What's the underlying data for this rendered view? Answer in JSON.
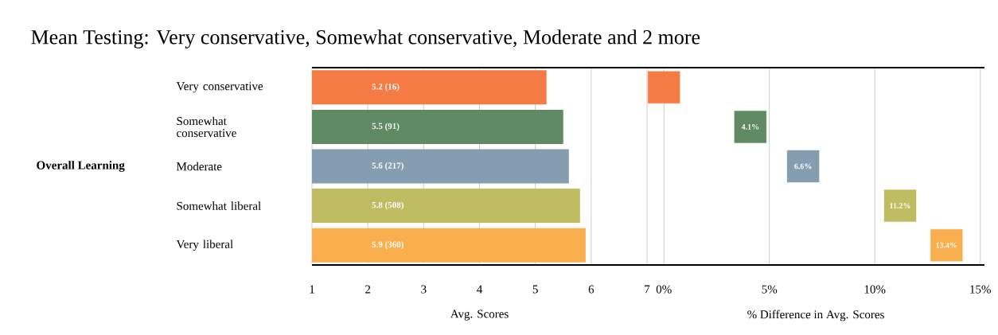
{
  "chart_data": [
    {
      "type": "bar",
      "orientation": "horizontal",
      "title": "Mean Testing: Very conservative, Somewhat conservative, Moderate and 2 more",
      "ylabel": "Overall Learning",
      "xlabel": "Avg. Scores",
      "categories": [
        "Very conservative",
        "Somewhat conservative",
        "Moderate",
        "Somewhat liberal",
        "Very liberal"
      ],
      "values": [
        5.2,
        5.5,
        5.6,
        5.8,
        5.9
      ],
      "colors": [
        "#f47b43",
        "#608a63",
        "#859db1",
        "#bfbc62",
        "#f9af4d"
      ],
      "value_labels": [
        "5.2  (16)",
        "5.5  (91)",
        "5.6  (217)",
        "5.8  (508)",
        "5.9  (360)"
      ],
      "xlim": [
        1,
        7
      ],
      "xticks": [
        1,
        2,
        3,
        4,
        5,
        6,
        7
      ],
      "grid": "x"
    },
    {
      "type": "scatter",
      "orientation": "horizontal",
      "marker": "square",
      "xlabel": "% Difference in Avg. Scores",
      "values": [
        0,
        4.1,
        6.6,
        11.2,
        13.4
      ],
      "colors": [
        "#f47b43",
        "#608a63",
        "#859db1",
        "#bfbc62",
        "#f9af4d"
      ],
      "value_labels": [
        null,
        "4.1%",
        "6.6%",
        "11.2%",
        "13.4%"
      ],
      "xlim": [
        -0.8,
        15.2
      ],
      "xticks": [
        {
          "value": 0,
          "label": "0%"
        },
        {
          "value": 5,
          "label": "5%"
        },
        {
          "value": 10,
          "label": "10%"
        },
        {
          "value": 15,
          "label": "15%"
        }
      ],
      "grid": "x",
      "tick_labels": "x"
    }
  ]
}
